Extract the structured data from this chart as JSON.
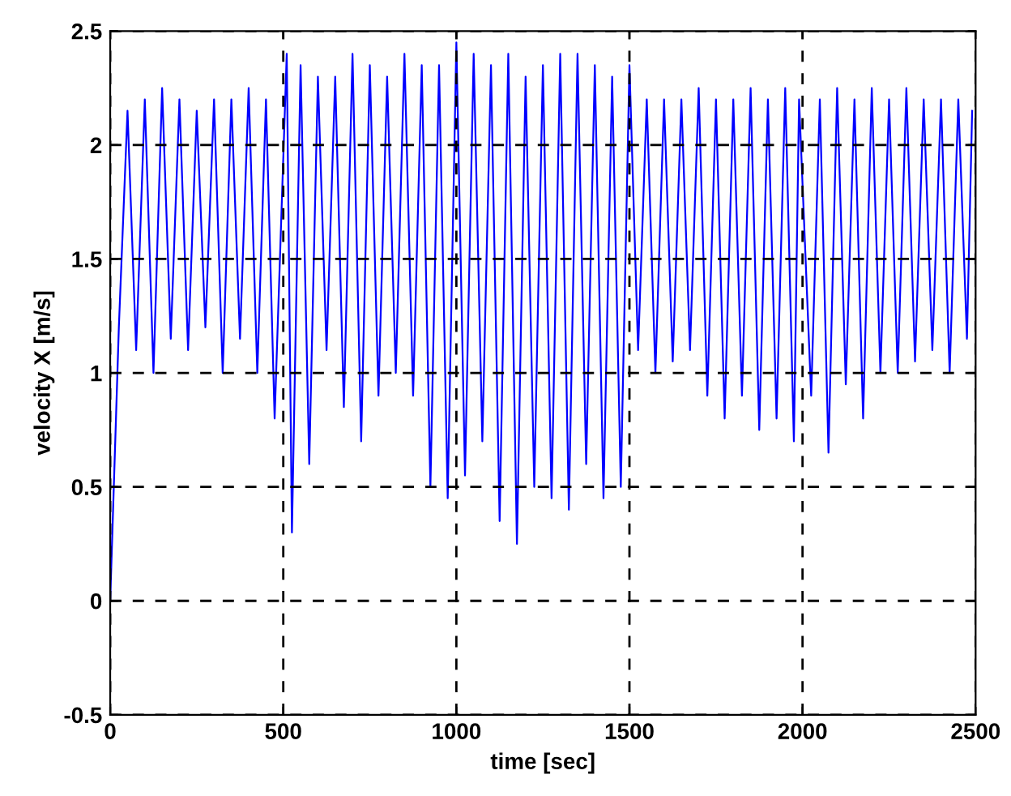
{
  "chart_data": {
    "type": "line",
    "xlabel": "time [sec]",
    "ylabel": "velocity X [m/s]",
    "x": [
      0,
      25,
      50,
      75,
      100,
      125,
      150,
      175,
      200,
      225,
      250,
      275,
      300,
      325,
      350,
      375,
      400,
      425,
      450,
      475,
      510,
      525,
      550,
      575,
      600,
      625,
      650,
      675,
      700,
      725,
      750,
      775,
      800,
      825,
      850,
      875,
      900,
      925,
      950,
      975,
      1000,
      1025,
      1050,
      1075,
      1100,
      1125,
      1150,
      1175,
      1200,
      1225,
      1250,
      1275,
      1300,
      1325,
      1350,
      1375,
      1400,
      1425,
      1450,
      1475,
      1500,
      1525,
      1550,
      1575,
      1600,
      1625,
      1650,
      1675,
      1700,
      1725,
      1750,
      1775,
      1800,
      1825,
      1850,
      1875,
      1900,
      1925,
      1950,
      1975,
      1990,
      2025,
      2050,
      2075,
      2100,
      2125,
      2150,
      2175,
      2200,
      2225,
      2250,
      2275,
      2300,
      2325,
      2350,
      2375,
      2400,
      2425,
      2450,
      2475,
      2490
    ],
    "series": [
      {
        "color": "#0000ff",
        "values": [
          0,
          1.2,
          2.15,
          1.1,
          2.2,
          1.0,
          2.25,
          1.15,
          2.2,
          1.1,
          2.15,
          1.2,
          2.2,
          1.0,
          2.2,
          1.15,
          2.25,
          1.0,
          2.2,
          0.8,
          2.4,
          0.3,
          2.35,
          0.6,
          2.3,
          1.1,
          2.3,
          0.85,
          2.4,
          0.7,
          2.35,
          0.9,
          2.3,
          1.0,
          2.4,
          0.9,
          2.35,
          0.5,
          2.35,
          0.45,
          2.45,
          0.55,
          2.4,
          0.7,
          2.35,
          0.35,
          2.4,
          0.25,
          2.3,
          0.5,
          2.35,
          0.45,
          2.4,
          0.4,
          2.4,
          0.6,
          2.35,
          0.45,
          2.3,
          0.5,
          2.35,
          1.1,
          2.2,
          1.0,
          2.2,
          1.05,
          2.2,
          1.1,
          2.25,
          0.9,
          2.2,
          0.8,
          2.2,
          0.9,
          2.25,
          0.75,
          2.2,
          0.8,
          2.25,
          0.7,
          2.2,
          0.9,
          2.2,
          0.65,
          2.25,
          0.95,
          2.2,
          0.8,
          2.25,
          1.0,
          2.2,
          1.0,
          2.25,
          1.05,
          2.2,
          1.1,
          2.2,
          1.0,
          2.2,
          1.15,
          2.15
        ]
      }
    ],
    "xlim": [
      0,
      2500
    ],
    "ylim": [
      -0.5,
      2.5
    ],
    "xticks": [
      0,
      500,
      1000,
      1500,
      2000,
      2500
    ],
    "yticks": [
      -0.5,
      0,
      0.5,
      1,
      1.5,
      2,
      2.5
    ],
    "grid": true,
    "line_style": "solid"
  }
}
